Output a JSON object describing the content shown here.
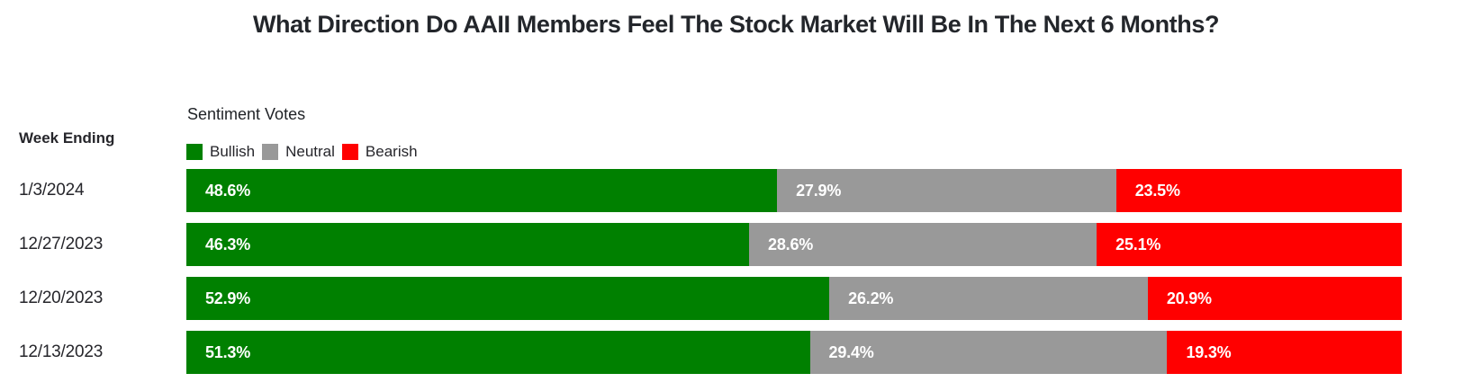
{
  "page": {
    "background": "#ffffff"
  },
  "title": "What Direction Do AAII Members Feel The Stock Market Will Be In The Next 6 Months?",
  "row_axis": {
    "label": "Week Ending"
  },
  "legend": {
    "title": "Sentiment Votes",
    "position": "top-left",
    "items": [
      {
        "label": "Bullish",
        "color": "#008000"
      },
      {
        "label": "Neutral",
        "color": "#999999"
      },
      {
        "label": "Bearish",
        "color": "#ff0000"
      }
    ]
  },
  "chart_data": {
    "type": "bar",
    "orientation": "horizontal",
    "stacked": true,
    "grid": false,
    "unit": "percent",
    "xlim": [
      0,
      100
    ],
    "title": "What Direction Do AAII Members Feel The Stock Market Will Be In The Next 6 Months?",
    "row_axis_label": "Week Ending",
    "categories": [
      "1/3/2024",
      "12/27/2023",
      "12/20/2023",
      "12/13/2023"
    ],
    "series": [
      {
        "name": "Bullish",
        "color": "#008000",
        "values": [
          48.6,
          46.3,
          52.9,
          51.3
        ],
        "labels": [
          "48.6%",
          "46.3%",
          "52.9%",
          "51.3%"
        ]
      },
      {
        "name": "Neutral",
        "color": "#999999",
        "values": [
          27.9,
          28.6,
          26.2,
          29.4
        ],
        "labels": [
          "27.9%",
          "28.6%",
          "26.2%",
          "29.4%"
        ]
      },
      {
        "name": "Bearish",
        "color": "#ff0000",
        "values": [
          23.5,
          25.1,
          20.9,
          19.3
        ],
        "labels": [
          "23.5%",
          "25.1%",
          "20.9%",
          "19.3%"
        ]
      }
    ]
  }
}
